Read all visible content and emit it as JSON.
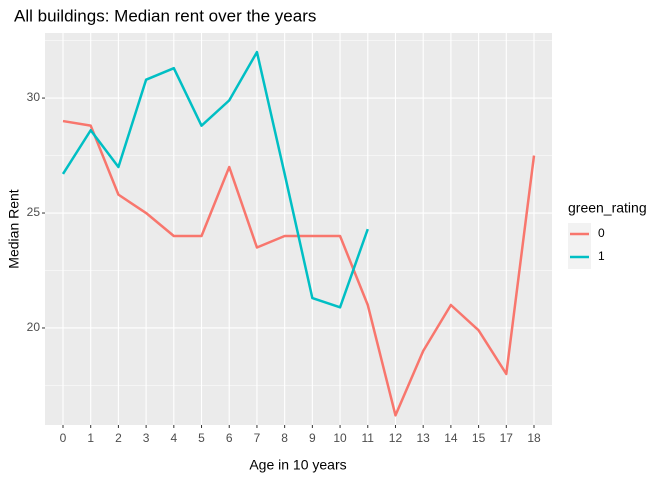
{
  "chart_data": {
    "type": "line",
    "title": "All buildings: Median rent over the years",
    "x_label": "Age in 10 years",
    "y_label": "Median Rent",
    "legend_title": "green_rating",
    "categories": [
      "0",
      "1",
      "2",
      "3",
      "4",
      "5",
      "6",
      "7",
      "8",
      "9",
      "10",
      "11",
      "12",
      "13",
      "14",
      "15",
      "17",
      "18"
    ],
    "series": [
      {
        "name": "0",
        "color": "#F8766D",
        "values": [
          29.0,
          28.8,
          25.8,
          25.0,
          24.0,
          24.0,
          27.0,
          23.5,
          24.0,
          24.0,
          24.0,
          21.0,
          16.2,
          19.0,
          21.0,
          19.9,
          18.0,
          27.5
        ]
      },
      {
        "name": "1",
        "color": "#00BFC4",
        "values": [
          26.7,
          28.6,
          27.0,
          30.8,
          31.3,
          28.8,
          29.9,
          32.0,
          26.7,
          21.3,
          20.9,
          24.3,
          null,
          null,
          null,
          null,
          null,
          null
        ]
      }
    ],
    "ylim": [
      15.78,
      32.83
    ],
    "yticks": [
      20,
      25,
      30
    ],
    "grid": true,
    "legend": "right"
  }
}
